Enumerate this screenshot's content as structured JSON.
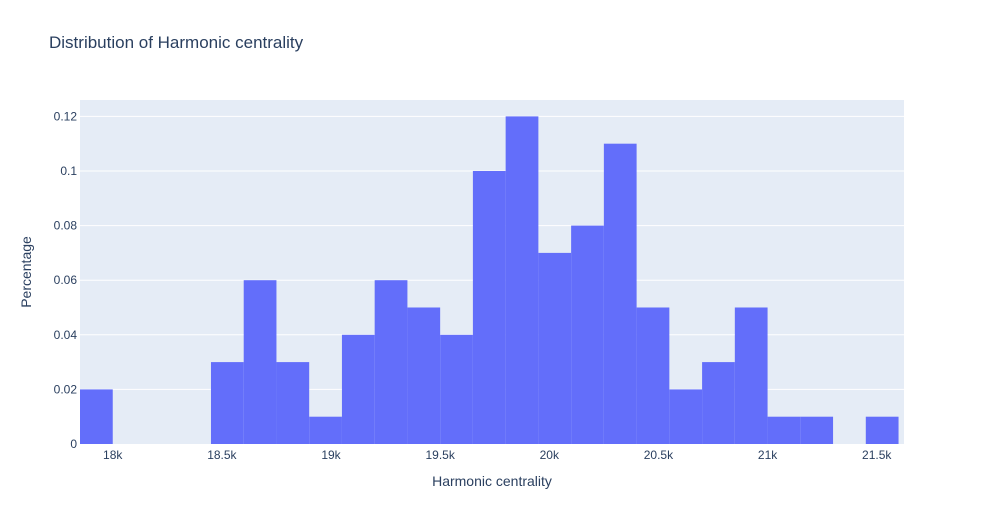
{
  "chart_data": {
    "type": "bar",
    "title": "Distribution of Harmonic centrality",
    "xlabel": "Harmonic centrality",
    "ylabel": "Percentage",
    "xlim": [
      17850,
      21625
    ],
    "ylim": [
      0,
      0.126
    ],
    "bin_width": 150,
    "bins": [
      {
        "start": 17850,
        "value": 0.02
      },
      {
        "start": 18000,
        "value": 0
      },
      {
        "start": 18150,
        "value": 0
      },
      {
        "start": 18300,
        "value": 0
      },
      {
        "start": 18450,
        "value": 0.03
      },
      {
        "start": 18600,
        "value": 0.06
      },
      {
        "start": 18750,
        "value": 0.03
      },
      {
        "start": 18900,
        "value": 0.01
      },
      {
        "start": 19050,
        "value": 0.04
      },
      {
        "start": 19200,
        "value": 0.06
      },
      {
        "start": 19350,
        "value": 0.05
      },
      {
        "start": 19500,
        "value": 0.04
      },
      {
        "start": 19650,
        "value": 0.1
      },
      {
        "start": 19800,
        "value": 0.12
      },
      {
        "start": 19950,
        "value": 0.07
      },
      {
        "start": 20100,
        "value": 0.08
      },
      {
        "start": 20250,
        "value": 0.11
      },
      {
        "start": 20400,
        "value": 0.05
      },
      {
        "start": 20550,
        "value": 0.02
      },
      {
        "start": 20700,
        "value": 0.03
      },
      {
        "start": 20850,
        "value": 0.05
      },
      {
        "start": 21000,
        "value": 0.01
      },
      {
        "start": 21150,
        "value": 0.01
      },
      {
        "start": 21300,
        "value": 0
      },
      {
        "start": 21450,
        "value": 0.01
      }
    ],
    "x_ticks": [
      {
        "value": 18000,
        "label": "18k"
      },
      {
        "value": 18500,
        "label": "18.5k"
      },
      {
        "value": 19000,
        "label": "19k"
      },
      {
        "value": 19500,
        "label": "19.5k"
      },
      {
        "value": 20000,
        "label": "20k"
      },
      {
        "value": 20500,
        "label": "20.5k"
      },
      {
        "value": 21000,
        "label": "21k"
      },
      {
        "value": 21500,
        "label": "21.5k"
      }
    ],
    "y_ticks": [
      {
        "value": 0,
        "label": "0"
      },
      {
        "value": 0.02,
        "label": "0.02"
      },
      {
        "value": 0.04,
        "label": "0.04"
      },
      {
        "value": 0.06,
        "label": "0.06"
      },
      {
        "value": 0.08,
        "label": "0.08"
      },
      {
        "value": 0.1,
        "label": "0.1"
      },
      {
        "value": 0.12,
        "label": "0.12"
      }
    ],
    "colors": {
      "bar": "#636efa",
      "plot_bg": "#e5ecf6",
      "grid": "#ffffff",
      "text": "#2a3f5f"
    },
    "grid": true
  }
}
